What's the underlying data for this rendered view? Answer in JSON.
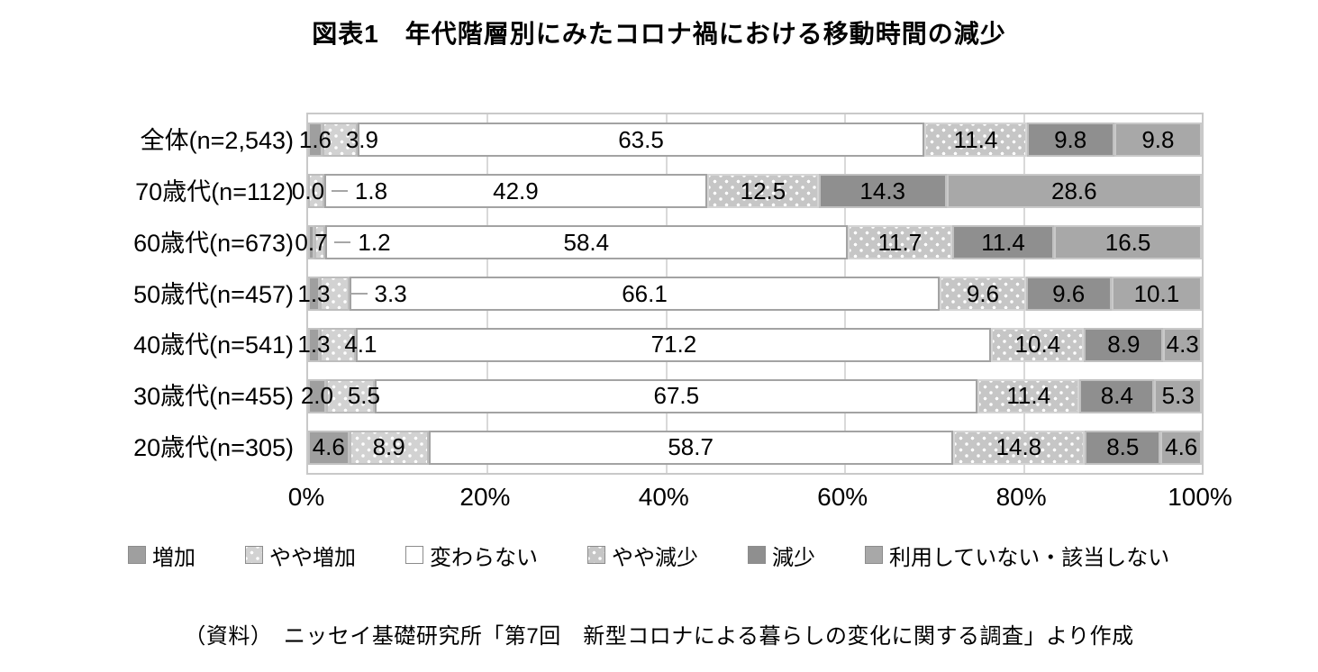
{
  "title": "図表1　年代階層別にみたコロナ禍における移動時間の減少",
  "source": "（資料）　ニッセイ基礎研究所「第7回　新型コロナによる暮らしの変化に関する調査」より作成",
  "chart_data": {
    "type": "bar",
    "variant": "horizontal-stacked-100pct",
    "title": "図表1　年代階層別にみたコロナ禍における移動時間の減少",
    "categories": [
      "全体(n=2,543)",
      "70歳代(n=112)",
      "60歳代(n=673)",
      "50歳代(n=457)",
      "40歳代(n=541)",
      "30歳代(n=455)",
      "20歳代(n=305)"
    ],
    "series": [
      {
        "name": "増加",
        "values": [
          1.6,
          0.0,
          0.7,
          1.3,
          1.3,
          2.0,
          4.6
        ],
        "fill": "#9f9f9f",
        "border": "#c3c3c3",
        "pattern": "solid"
      },
      {
        "name": "やや増加",
        "values": [
          3.9,
          1.8,
          1.2,
          3.3,
          4.1,
          5.5,
          8.9
        ],
        "fill": "#d2d2d2",
        "border": "#bdbdbd",
        "pattern": "dots"
      },
      {
        "name": "変わらない",
        "values": [
          63.5,
          42.9,
          58.4,
          66.1,
          71.2,
          67.5,
          58.7
        ],
        "fill": "#ffffff",
        "border": "#a3a3a3",
        "pattern": "solid"
      },
      {
        "name": "やや減少",
        "values": [
          11.4,
          12.5,
          11.7,
          9.6,
          10.4,
          11.4,
          14.8
        ],
        "fill": "#c6c6c6",
        "border": "#d4d4d4",
        "pattern": "dots"
      },
      {
        "name": "減少",
        "values": [
          9.8,
          14.3,
          11.4,
          9.6,
          8.9,
          8.4,
          8.5
        ],
        "fill": "#8f8f8f",
        "border": "#c0c0c0",
        "pattern": "solid"
      },
      {
        "name": "利用していない・該当しない",
        "values": [
          9.8,
          28.6,
          16.5,
          10.1,
          4.3,
          5.3,
          4.6
        ],
        "fill": "#a8a8a8",
        "border": "#c9c9c9",
        "pattern": "solid"
      }
    ],
    "x_axis": {
      "min": 0,
      "max": 100,
      "ticks": [
        "0%",
        "20%",
        "40%",
        "60%",
        "80%",
        "100%"
      ]
    },
    "value_label_decimals": 1,
    "grid": true,
    "legend_position": "bottom"
  }
}
